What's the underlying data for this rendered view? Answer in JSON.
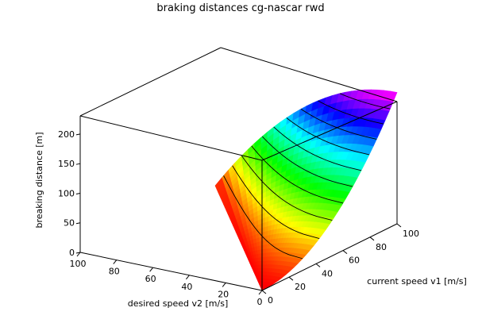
{
  "chart_data": {
    "type": "surface3d",
    "title": "braking distances cg-nascar rwd",
    "xlabel": "current speed v1 [m/s]",
    "ylabel": "desired speed v2 [m/s]",
    "zlabel": "breaking distance [m]",
    "x_range": [
      0,
      100
    ],
    "y_range": [
      0,
      100
    ],
    "z_range": [
      0,
      220
    ],
    "x_ticks": [
      0,
      20,
      40,
      60,
      80,
      100
    ],
    "y_ticks": [
      0,
      20,
      40,
      60,
      80,
      100
    ],
    "z_ticks": [
      0,
      50,
      100,
      150,
      200
    ],
    "domain": "v2 <= v1",
    "contour_levels": [
      20,
      40,
      60,
      80,
      100,
      120,
      140,
      160,
      180,
      200
    ],
    "z_max": 222,
    "colormap": "rainbow (red low → magenta high)",
    "surface_points": [
      {
        "v1": 0,
        "v2": 0,
        "d": 0
      },
      {
        "v1": 100,
        "v2": 0,
        "d": 222
      },
      {
        "v1": 100,
        "v2": 100,
        "d": 0
      },
      {
        "v1": 50,
        "v2": 0,
        "d": 55.5
      },
      {
        "v1": 100,
        "v2": 50,
        "d": 166.5
      },
      {
        "v1": 50,
        "v2": 50,
        "d": 0
      }
    ]
  }
}
